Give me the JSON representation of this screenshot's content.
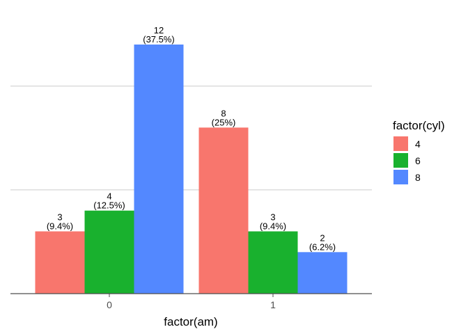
{
  "chart_data": {
    "type": "bar",
    "categories": [
      "0",
      "1"
    ],
    "xlabel": "factor(am)",
    "ylabel": "",
    "ylim": [
      0,
      12
    ],
    "grid": true,
    "legend": {
      "title": "factor(cyl)",
      "placement": "right",
      "entries": [
        {
          "label": "4",
          "color": "#F8766D"
        },
        {
          "label": "6",
          "color": "#19B12E"
        },
        {
          "label": "8",
          "color": "#5388FF"
        }
      ]
    },
    "series": [
      {
        "name": "4",
        "color": "#F8766D",
        "values": [
          3,
          8
        ],
        "labels": [
          [
            "3",
            "(9.4%)"
          ],
          [
            "8",
            "(25%)"
          ]
        ]
      },
      {
        "name": "6",
        "color": "#19B12E",
        "values": [
          4,
          3
        ],
        "labels": [
          [
            "4",
            "(12.5%)"
          ],
          [
            "3",
            "(9.4%)"
          ]
        ]
      },
      {
        "name": "8",
        "color": "#5388FF",
        "values": [
          12,
          2
        ],
        "labels": [
          [
            "12",
            "(37.5%)"
          ],
          [
            "2",
            "(6.2%)"
          ]
        ]
      }
    ]
  }
}
